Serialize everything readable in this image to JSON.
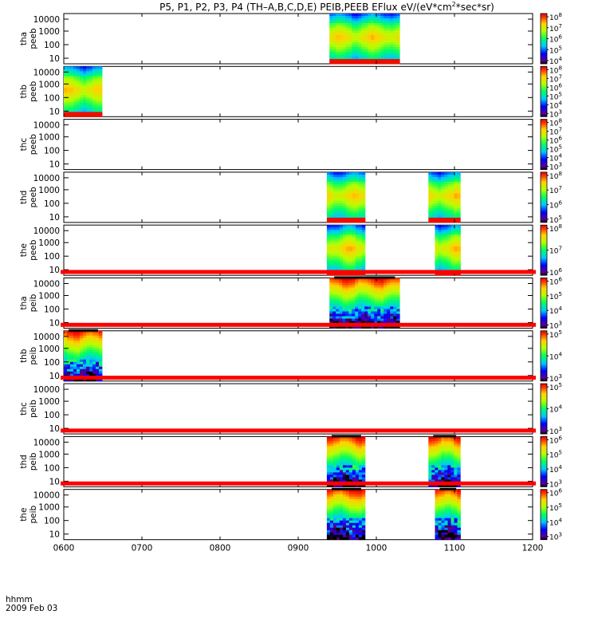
{
  "chart_data": {
    "type": "heatmap",
    "title": "P5, P1, P2, P3, P4 (TH–A,B,C,D,E) PEIB,PEEB EFlux eV/(eV*cm",
    "title_sup": "2",
    "title_suffix": "*sec*sr)",
    "x_axis": {
      "label": "hhmm",
      "date": "2009 Feb 03",
      "ticks": [
        "0600",
        "0700",
        "0800",
        "0900",
        "1000",
        "1100",
        "1200"
      ],
      "range": [
        "0600",
        "1200"
      ]
    },
    "y_scale": "log",
    "y_ticks": [
      "10000",
      "1000",
      "100",
      "10"
    ],
    "colorscale": "rainbow (purple → blue → green → yellow → red)",
    "panels": [
      {
        "probe": "tha",
        "product": "peeb",
        "data_intervals": [
          [
            "0924",
            "1018"
          ]
        ],
        "colorbar": [
          "10",
          "10",
          "10",
          "10",
          "10"
        ],
        "colorbar_exp": [
          "8",
          "7",
          "6",
          "5",
          "4"
        ],
        "missing_band": false
      },
      {
        "probe": "thb",
        "product": "peeb",
        "data_intervals": [
          [
            "0600",
            "0630"
          ]
        ],
        "colorbar": [
          "10",
          "10",
          "10",
          "10",
          "10",
          "10"
        ],
        "colorbar_exp": [
          "8",
          "7",
          "6",
          "5",
          "4",
          "3"
        ],
        "missing_band": false
      },
      {
        "probe": "thc",
        "product": "peeb",
        "data_intervals": [],
        "colorbar": [
          "10",
          "10",
          "10",
          "10",
          "10",
          "10"
        ],
        "colorbar_exp": [
          "8",
          "7",
          "6",
          "5",
          "4",
          "3"
        ],
        "missing_band": false
      },
      {
        "probe": "thd",
        "product": "peeb",
        "data_intervals": [
          [
            "0922",
            "0952"
          ],
          [
            "1040",
            "1105"
          ]
        ],
        "colorbar": [
          "10",
          "10",
          "10",
          "10"
        ],
        "colorbar_exp": [
          "8",
          "7",
          "6",
          "5"
        ],
        "missing_band": false
      },
      {
        "probe": "the",
        "product": "peeb",
        "data_intervals": [
          [
            "0922",
            "0952"
          ],
          [
            "1045",
            "1105"
          ]
        ],
        "colorbar": [
          "10",
          "10",
          "10"
        ],
        "colorbar_exp": [
          "8",
          "7",
          "6"
        ],
        "missing_band": false
      },
      {
        "probe": "tha",
        "product": "peib",
        "data_intervals": [
          [
            "0924",
            "1018"
          ]
        ],
        "colorbar": [
          "10",
          "10",
          "10",
          "10"
        ],
        "colorbar_exp": [
          "6",
          "5",
          "4",
          "3"
        ],
        "missing_band": true
      },
      {
        "probe": "thb",
        "product": "peib",
        "data_intervals": [
          [
            "0600",
            "0630"
          ]
        ],
        "colorbar": [
          "10",
          "10",
          "10"
        ],
        "colorbar_exp": [
          "5",
          "4",
          "3"
        ],
        "missing_band": true
      },
      {
        "probe": "thc",
        "product": "peib",
        "data_intervals": [],
        "colorbar": [
          "10",
          "10",
          "10"
        ],
        "colorbar_exp": [
          "5",
          "4",
          "3"
        ],
        "missing_band": true
      },
      {
        "probe": "thd",
        "product": "peib",
        "data_intervals": [
          [
            "0922",
            "0952"
          ],
          [
            "1040",
            "1105"
          ]
        ],
        "colorbar": [
          "10",
          "10",
          "10",
          "10"
        ],
        "colorbar_exp": [
          "6",
          "5",
          "4",
          "3"
        ],
        "missing_band": true
      },
      {
        "probe": "the",
        "product": "peib",
        "data_intervals": [
          [
            "0922",
            "0952"
          ],
          [
            "1045",
            "1105"
          ]
        ],
        "colorbar": [
          "10",
          "10",
          "10",
          "10"
        ],
        "colorbar_exp": [
          "6",
          "5",
          "4",
          "3"
        ],
        "missing_band": true
      }
    ]
  }
}
